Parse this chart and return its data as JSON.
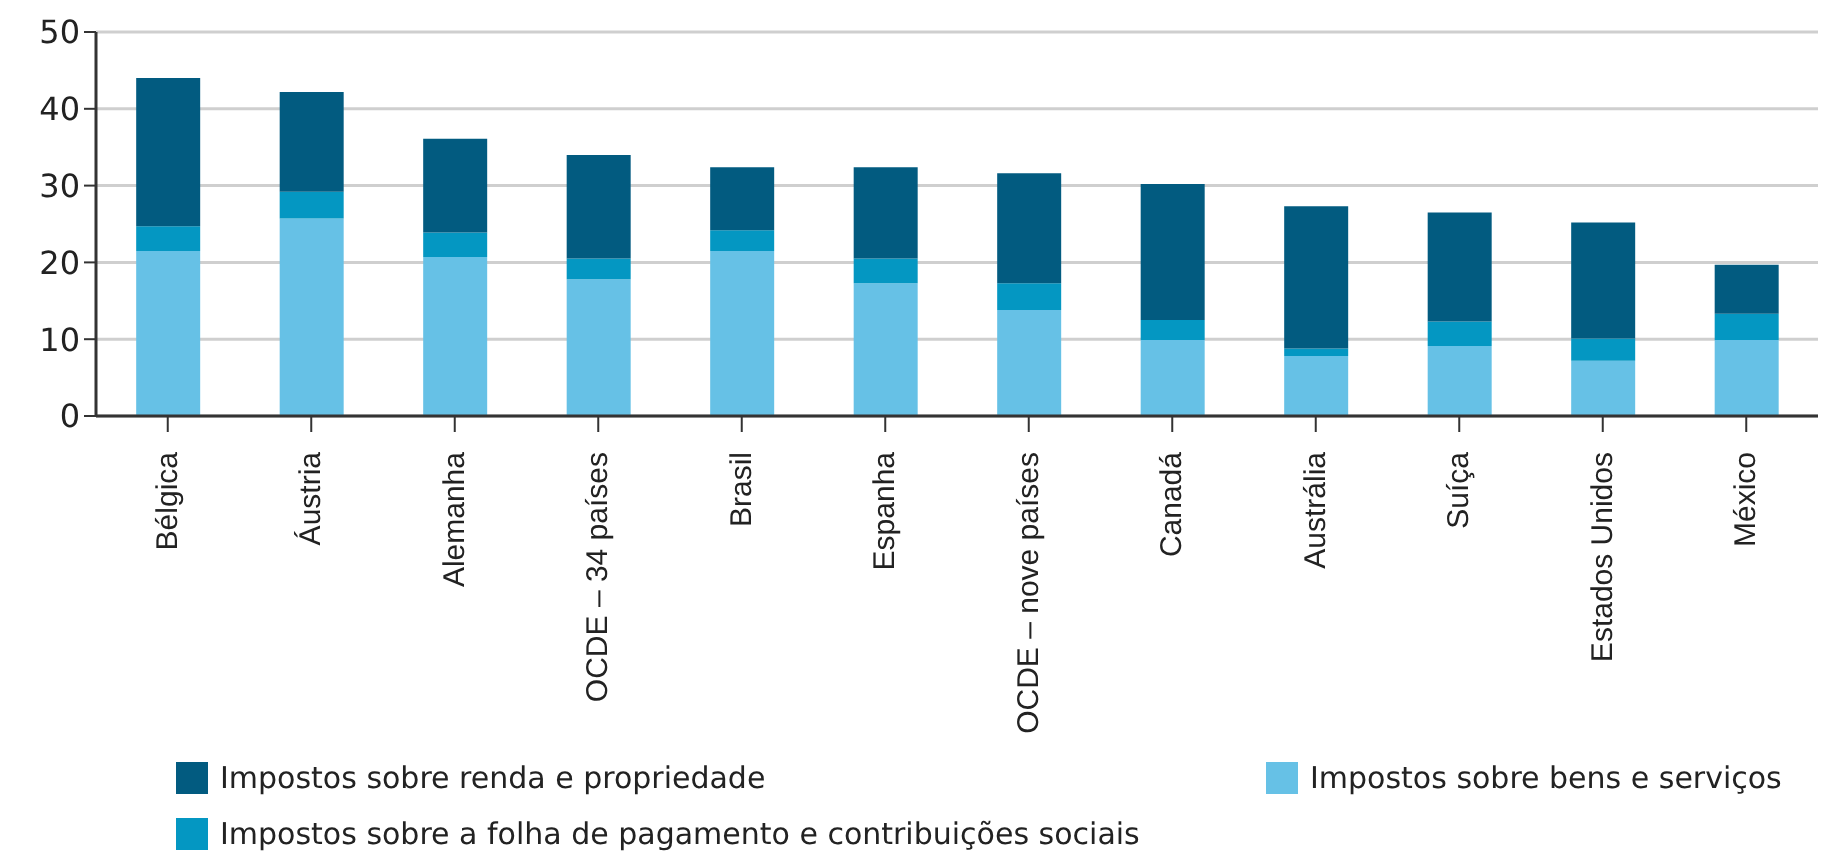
{
  "chart_data": {
    "type": "bar",
    "stacked": true,
    "categories": [
      "Bélgica",
      "Áustria",
      "Alemanha",
      "OCDE – 34 países",
      "Brasil",
      "Espanha",
      "OCDE – nove países",
      "Canadá",
      "Austrália",
      "Suíça",
      "Estados Unidos",
      "México"
    ],
    "series": [
      {
        "name": "Impostos sobre bens e serviços",
        "color": "#66c1e6",
        "values": [
          21.5,
          25.7,
          20.7,
          17.8,
          21.5,
          17.3,
          13.8,
          9.9,
          7.8,
          9.1,
          7.2,
          9.9
        ]
      },
      {
        "name": "Impostos sobre a folha de pagamento e contribuições sociais",
        "color": "#0497c2",
        "values": [
          3.2,
          3.5,
          3.2,
          2.7,
          2.7,
          3.2,
          3.5,
          2.6,
          1.0,
          3.2,
          2.9,
          3.4
        ]
      },
      {
        "name": "Impostos sobre renda e propriedade",
        "color": "#025b80",
        "values": [
          19.3,
          13.0,
          12.2,
          13.5,
          8.2,
          11.9,
          14.3,
          17.7,
          18.5,
          14.2,
          15.1,
          6.4
        ]
      }
    ],
    "ylim": [
      0,
      50
    ],
    "yticks": [
      0,
      10,
      20,
      30,
      40,
      50
    ],
    "grid": "y",
    "legend": "bottom"
  }
}
